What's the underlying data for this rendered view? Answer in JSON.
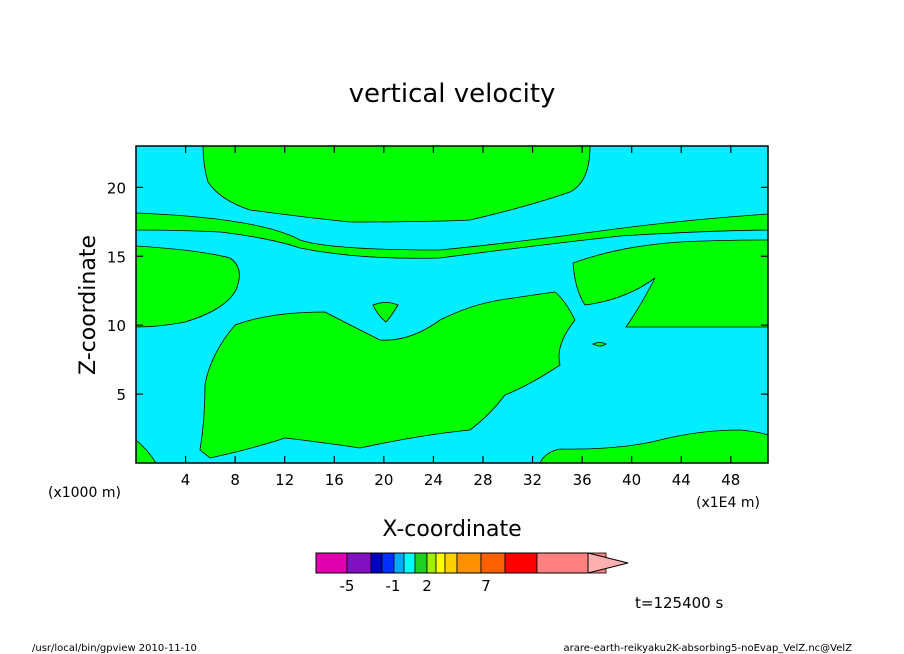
{
  "chart_data": {
    "type": "heatmap",
    "title": "vertical velocity",
    "xlabel": "X-coordinate",
    "ylabel": "Z-coordinate",
    "x_unit_label": "(x1E4 m)",
    "y_unit_label": "(x1000 m)",
    "xlim": [
      0,
      51
    ],
    "ylim": [
      0,
      23
    ],
    "x_ticks": [
      4,
      8,
      12,
      16,
      20,
      24,
      28,
      32,
      36,
      40,
      44,
      48
    ],
    "y_ticks": [
      5,
      10,
      15,
      20
    ],
    "fill_colors": {
      "positive": "#00ff00",
      "negative": "#00eeff"
    },
    "colorbar": {
      "colors": [
        "#e000b0",
        "#8010c0",
        "#0000c0",
        "#0030ff",
        "#00aaff",
        "#00ffff",
        "#20d020",
        "#a0f000",
        "#ffff00",
        "#ffd000",
        "#ff9000",
        "#ff6000",
        "#ff0000",
        "#ff8080",
        "#ffb0b0"
      ],
      "labels": [
        "-5",
        "-1",
        "2",
        "7"
      ]
    },
    "time_label": "t=125400 s"
  },
  "footer": {
    "left": "/usr/local/bin/gpview  2010-11-10",
    "right": "arare-earth-reikyaku2K-absorbing5-noEvap_VelZ.nc@VelZ"
  }
}
